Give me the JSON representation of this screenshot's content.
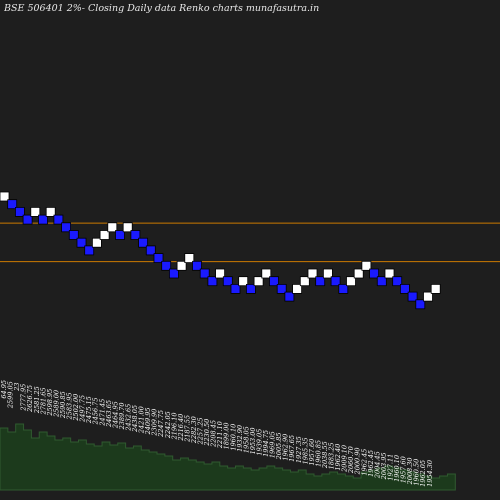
{
  "header": {
    "title": "BSE 506401 2%-  Closing Daily data  Renko  charts munafasutra.in"
  },
  "colors": {
    "background": "#1e1e1e",
    "up_brick": "#ffffff",
    "down_brick": "#1a1aff",
    "brick_border": "#000000",
    "level_line": "#cc7a00",
    "volume_fill": "#1c3a1c",
    "volume_stroke": "#2f5a2f",
    "label_text": "#ffffff"
  },
  "chart_data": {
    "type": "renko",
    "brick_size_percent": 2,
    "bricks": [
      {
        "level": 0,
        "dir": "up"
      },
      {
        "level": -1,
        "dir": "down"
      },
      {
        "level": -2,
        "dir": "down"
      },
      {
        "level": -3,
        "dir": "down"
      },
      {
        "level": -2,
        "dir": "up"
      },
      {
        "level": -3,
        "dir": "down"
      },
      {
        "level": -2,
        "dir": "up"
      },
      {
        "level": -3,
        "dir": "down"
      },
      {
        "level": -4,
        "dir": "down"
      },
      {
        "level": -5,
        "dir": "down"
      },
      {
        "level": -6,
        "dir": "down"
      },
      {
        "level": -7,
        "dir": "down"
      },
      {
        "level": -6,
        "dir": "up"
      },
      {
        "level": -5,
        "dir": "up"
      },
      {
        "level": -4,
        "dir": "up"
      },
      {
        "level": -5,
        "dir": "down"
      },
      {
        "level": -4,
        "dir": "up"
      },
      {
        "level": -5,
        "dir": "down"
      },
      {
        "level": -6,
        "dir": "down"
      },
      {
        "level": -7,
        "dir": "down"
      },
      {
        "level": -8,
        "dir": "down"
      },
      {
        "level": -9,
        "dir": "down"
      },
      {
        "level": -10,
        "dir": "down"
      },
      {
        "level": -9,
        "dir": "up"
      },
      {
        "level": -8,
        "dir": "up"
      },
      {
        "level": -9,
        "dir": "down"
      },
      {
        "level": -10,
        "dir": "down"
      },
      {
        "level": -11,
        "dir": "down"
      },
      {
        "level": -10,
        "dir": "up"
      },
      {
        "level": -11,
        "dir": "down"
      },
      {
        "level": -12,
        "dir": "down"
      },
      {
        "level": -11,
        "dir": "up"
      },
      {
        "level": -12,
        "dir": "down"
      },
      {
        "level": -11,
        "dir": "up"
      },
      {
        "level": -10,
        "dir": "up"
      },
      {
        "level": -11,
        "dir": "down"
      },
      {
        "level": -12,
        "dir": "down"
      },
      {
        "level": -13,
        "dir": "down"
      },
      {
        "level": -12,
        "dir": "up"
      },
      {
        "level": -11,
        "dir": "up"
      },
      {
        "level": -10,
        "dir": "up"
      },
      {
        "level": -11,
        "dir": "down"
      },
      {
        "level": -10,
        "dir": "up"
      },
      {
        "level": -11,
        "dir": "down"
      },
      {
        "level": -12,
        "dir": "down"
      },
      {
        "level": -11,
        "dir": "up"
      },
      {
        "level": -10,
        "dir": "up"
      },
      {
        "level": -9,
        "dir": "up"
      },
      {
        "level": -10,
        "dir": "down"
      },
      {
        "level": -11,
        "dir": "down"
      },
      {
        "level": -10,
        "dir": "up"
      },
      {
        "level": -11,
        "dir": "down"
      },
      {
        "level": -12,
        "dir": "down"
      },
      {
        "level": -13,
        "dir": "down"
      },
      {
        "level": -14,
        "dir": "down"
      },
      {
        "level": -13,
        "dir": "up"
      },
      {
        "level": -12,
        "dir": "up"
      }
    ],
    "level_lines": [
      -3,
      -8
    ],
    "volume_profile": [
      62,
      58,
      66,
      60,
      52,
      58,
      54,
      50,
      52,
      48,
      50,
      46,
      44,
      48,
      45,
      47,
      42,
      44,
      40,
      38,
      36,
      34,
      30,
      32,
      30,
      28,
      26,
      28,
      24,
      22,
      24,
      22,
      20,
      22,
      24,
      22,
      20,
      18,
      20,
      16,
      14,
      16,
      18,
      16,
      14,
      12,
      18,
      20,
      22,
      24,
      22,
      20,
      18,
      16,
      14,
      12,
      14,
      16
    ],
    "price_labels": [
      "64.95",
      "2599.05",
      "23",
      "2777.95",
      "2626.75",
      "2581.25",
      "2781.65",
      "2598.95",
      "2589.00",
      "2590.85",
      "2583.95",
      "2502.00",
      "2497.75",
      "2475.15",
      "2456.75",
      "2471.45",
      "2463.65",
      "2464.95",
      "2389.70",
      "2432.65",
      "2438.05",
      "2421.00",
      "2409.95",
      "2309.90",
      "2247.75",
      "2242.05",
      "2196.10",
      "2216.40",
      "2187.55",
      "2282.30",
      "2257.25",
      "2230.50",
      "2208.45",
      "2211.10",
      "1899.00",
      "1960.10",
      "1932.90",
      "1958.05",
      "1953.00",
      "1939.05",
      "1994.75",
      "1969.05",
      "2005.85",
      "1962.90",
      "1967.65",
      "1927.35",
      "1985.35",
      "1957.60",
      "1960.85",
      "2038.55",
      "1883.25",
      "1962.40",
      "2009.10",
      "2060.70",
      "2000.90",
      "1962.45",
      "1962.45",
      "2004.45",
      "2003.95",
      "1927.11",
      "1960.10",
      "1957.60",
      "2008.30",
      "1960.50",
      "1962.05",
      "1954.30"
    ]
  }
}
